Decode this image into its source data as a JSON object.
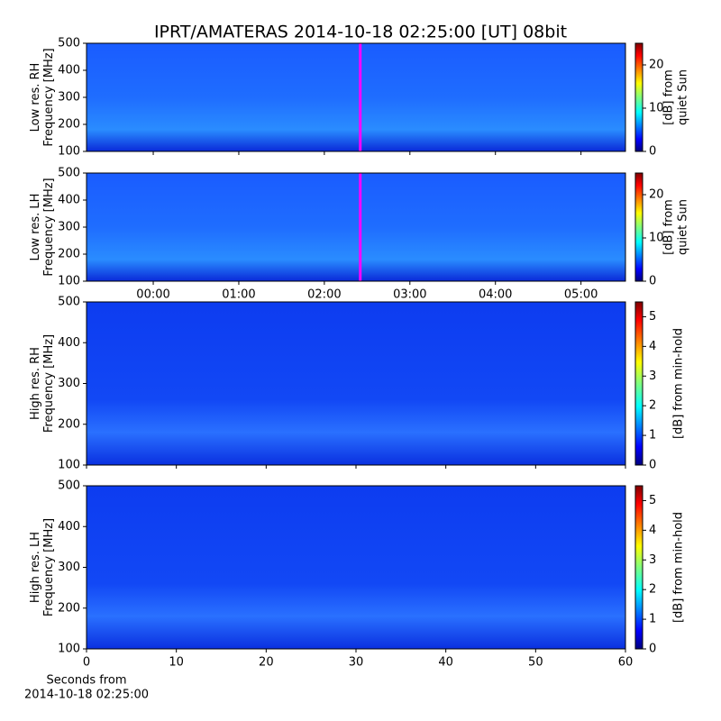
{
  "chart_data": [
    {
      "type": "heatmap",
      "title": "IPRT/AMATERAS 2014-10-18 02:25:00 [UT]   08bit",
      "ylabel": [
        "Low res. RH",
        "Frequency [MHz]"
      ],
      "ylim": [
        100,
        500
      ],
      "yticks": [
        100,
        200,
        300,
        400,
        500
      ],
      "xlim": [
        -0.78,
        5.52
      ],
      "xticks": [
        0,
        1,
        2,
        3,
        4,
        5
      ],
      "marker": {
        "x": 2.42,
        "color": "#ff00ff"
      },
      "colorbar": {
        "label": [
          "[dB] from",
          "quiet Sun"
        ],
        "colormap": "jet",
        "lim": [
          0,
          25
        ],
        "ticks": [
          0,
          10,
          20
        ]
      }
    },
    {
      "type": "heatmap",
      "ylabel": [
        "Low res. LH",
        "Frequency [MHz]"
      ],
      "ylim": [
        100,
        500
      ],
      "yticks": [
        100,
        200,
        300,
        400,
        500
      ],
      "xlim": [
        -0.78,
        5.52
      ],
      "xticks": [
        {
          "value": 0,
          "label": "00:00"
        },
        {
          "value": 1,
          "label": "01:00"
        },
        {
          "value": 2,
          "label": "02:00"
        },
        {
          "value": 3,
          "label": "03:00"
        },
        {
          "value": 4,
          "label": "04:00"
        },
        {
          "value": 5,
          "label": "05:00"
        }
      ],
      "marker": {
        "x": 2.42,
        "color": "#ff00ff"
      },
      "colorbar": {
        "label": [
          "[dB] from",
          "quiet Sun"
        ],
        "colormap": "jet",
        "lim": [
          0,
          25
        ],
        "ticks": [
          0,
          10,
          20
        ]
      }
    },
    {
      "type": "heatmap",
      "ylabel": [
        "High res. RH",
        "Frequency [MHz]"
      ],
      "ylim": [
        100,
        500
      ],
      "yticks": [
        100,
        200,
        300,
        400,
        500
      ],
      "xlim": [
        0,
        60
      ],
      "xticks": [
        0,
        10,
        20,
        30,
        40,
        50,
        60
      ],
      "colorbar": {
        "label": [
          "[dB] from min-hold"
        ],
        "colormap": "jet",
        "lim": [
          0,
          5.5
        ],
        "ticks": [
          0,
          1,
          2,
          3,
          4,
          5
        ]
      }
    },
    {
      "type": "heatmap",
      "ylabel": [
        "High res. LH",
        "Frequency [MHz]"
      ],
      "ylim": [
        100,
        500
      ],
      "yticks": [
        100,
        200,
        300,
        400,
        500
      ],
      "xlim": [
        0,
        60
      ],
      "xticks": [
        0,
        10,
        20,
        30,
        40,
        50,
        60
      ],
      "xlabel": [
        "Seconds from",
        "2014-10-18 02:25:00"
      ],
      "colorbar": {
        "label": [
          "[dB] from min-hold"
        ],
        "colormap": "jet",
        "lim": [
          0,
          5.5
        ],
        "ticks": [
          0,
          1,
          2,
          3,
          4,
          5
        ]
      }
    }
  ]
}
